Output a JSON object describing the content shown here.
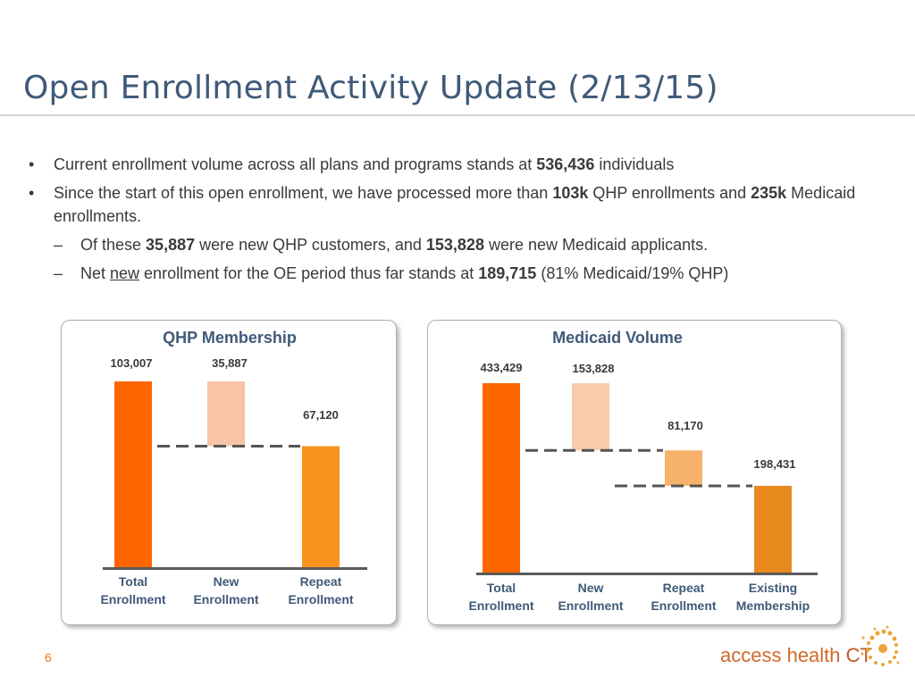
{
  "title": "Open Enrollment Activity Update (2/13/15)",
  "bullets": {
    "b1": {
      "pre": "Current enrollment volume across all plans and programs stands at ",
      "num": "536,436",
      "post": " individuals"
    },
    "b2": {
      "pre": "Since the start of this open enrollment, we have processed more than ",
      "num1": "103k",
      "mid": " QHP enrollments and  ",
      "num2": "235k",
      "post": " Medicaid enrollments."
    },
    "s1": {
      "pre": "Of these ",
      "num1": "35,887",
      "mid": " were new QHP customers, and ",
      "num2": "153,828",
      "post": " were new Medicaid applicants."
    },
    "s2": {
      "pre": "Net ",
      "underlined": "new",
      "mid": " enrollment for the OE period thus far stands at ",
      "num": "189,715",
      "post": " (81% Medicaid/19% QHP)"
    },
    "bullet_char": "•",
    "dash_char": "–"
  },
  "chart_data": [
    {
      "type": "bar",
      "subtype": "waterfall",
      "title": "QHP Membership",
      "categories": [
        "Total Enrollment",
        "New Enrollment",
        "Repeat Enrollment"
      ],
      "category_lines": [
        [
          "Total",
          "Enrollment"
        ],
        [
          "New",
          "Enrollment"
        ],
        [
          "Repeat",
          "Enrollment"
        ]
      ],
      "values": [
        103007,
        35887,
        67120
      ],
      "labels": [
        "103,007",
        "35,887",
        "67,120"
      ],
      "segments": [
        {
          "start": 0,
          "end": 103007,
          "color": "#ff6600"
        },
        {
          "start": 67120,
          "end": 103007,
          "color": "#f7c4a5"
        },
        {
          "start": 0,
          "end": 67120,
          "color": "#f7931e"
        }
      ],
      "connector_level": 67120,
      "ylim": [
        0,
        103007
      ]
    },
    {
      "type": "bar",
      "subtype": "waterfall",
      "title": "Medicaid Volume",
      "categories": [
        "Total Enrollment",
        "New Enrollment",
        "Repeat Enrollment",
        "Existing Membership"
      ],
      "category_lines": [
        [
          "Total",
          "Enrollment"
        ],
        [
          "New",
          "Enrollment"
        ],
        [
          "Repeat",
          "Enrollment"
        ],
        [
          "Existing",
          "Membership"
        ]
      ],
      "values": [
        433429,
        153828,
        81170,
        198431
      ],
      "labels": [
        "433,429",
        "153,828",
        "81,170",
        "198,431"
      ],
      "segments": [
        {
          "start": 0,
          "end": 433429,
          "color": "#ff6600"
        },
        {
          "start": 279601,
          "end": 433429,
          "color": "#f8cbad"
        },
        {
          "start": 198431,
          "end": 279601,
          "color": "#f6b26b"
        },
        {
          "start": 0,
          "end": 198431,
          "color": "#e8891d"
        }
      ],
      "connector_levels": [
        279601,
        198431
      ],
      "ylim": [
        0,
        433429
      ]
    }
  ],
  "footer": {
    "page_number": "6",
    "logo_text": "access health ",
    "logo_ct": "CT"
  }
}
